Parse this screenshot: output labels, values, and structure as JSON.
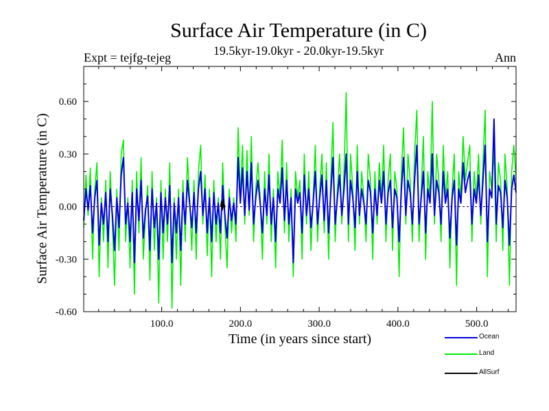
{
  "chart_data": {
    "type": "line",
    "title": "Surface Air Temperature (in C)",
    "subtitle": "19.5kyr-19.0kyr - 20.0kyr-19.5kyr",
    "expt_label": "Expt = tejfg-tejeg",
    "period_label": "Ann",
    "xlabel": "Time (in years since start)",
    "ylabel": "Surface Air Temperature (in C)",
    "xlim": [
      1,
      550
    ],
    "ylim": [
      -0.6,
      0.8
    ],
    "x_ticks": [
      100,
      200,
      300,
      400,
      500
    ],
    "x_tick_labels": [
      "100.0",
      "200.0",
      "300.0",
      "400.0",
      "500.0"
    ],
    "y_ticks": [
      -0.6,
      -0.3,
      0.0,
      0.3,
      0.6
    ],
    "y_tick_labels": [
      "-0.60",
      "-0.30",
      "0.00",
      "0.30",
      "0.60"
    ],
    "zero_line": true,
    "legend_position": "bottom-right",
    "series": [
      {
        "name": "Land",
        "color": "#00ee00",
        "values": [
          -0.12,
          0.18,
          -0.05,
          0.22,
          -0.3,
          0.1,
          0.25,
          -0.4,
          0.05,
          -0.2,
          0.15,
          -0.35,
          0.2,
          -0.1,
          -0.45,
          0.1,
          -0.25,
          0.3,
          0.38,
          -0.2,
          0.05,
          -0.35,
          0.15,
          -0.5,
          0.2,
          -0.15,
          0.28,
          -0.3,
          -0.05,
          0.12,
          -0.42,
          0.2,
          -0.25,
          0.05,
          -0.55,
          0.15,
          -0.3,
          0.1,
          -0.2,
          0.25,
          -0.58,
          0.05,
          -0.3,
          0.1,
          -0.45,
          0.15,
          -0.2,
          0.28,
          0.05,
          -0.25,
          0.15,
          -0.3,
          0.2,
          0.35,
          -0.1,
          0.18,
          -0.28,
          0.1,
          -0.4,
          0.15,
          -0.2,
          0.05,
          -0.3,
          0.25,
          -0.1,
          -0.35,
          0.1,
          -0.15,
          0.05,
          -0.2,
          0.45,
          0.05,
          0.35,
          -0.1,
          0.32,
          -0.05,
          0.4,
          -0.2,
          0.1,
          0.25,
          0.05,
          -0.3,
          0.2,
          -0.1,
          0.3,
          -0.2,
          0.1,
          -0.35,
          0.2,
          0.05,
          0.38,
          -0.15,
          0.25,
          -0.2,
          0.1,
          -0.4,
          0.2,
          0.05,
          0.15,
          -0.3,
          0.3,
          -0.1,
          0.2,
          -0.25,
          0.05,
          0.35,
          -0.2,
          0.1,
          0.3,
          -0.15,
          0.25,
          -0.3,
          0.15,
          0.48,
          -0.2,
          0.1,
          0.3,
          -0.1,
          0.2,
          0.65,
          -0.2,
          0.3,
          0.1,
          -0.25,
          0.35,
          -0.1,
          0.2,
          0.05,
          -0.2,
          0.3,
          0.15,
          -0.3,
          0.2,
          -0.1,
          0.25,
          0.05,
          0.35,
          -0.2,
          0.15,
          0.3,
          -0.25,
          0.2,
          0.1,
          -0.4,
          0.2,
          0.45,
          -0.1,
          0.3,
          0.15,
          -0.2,
          0.3,
          0.55,
          -0.2,
          0.1,
          0.4,
          -0.3,
          0.2,
          0.05,
          0.6,
          -0.1,
          0.3,
          0.15,
          -0.2,
          0.35,
          0.05,
          0.2,
          -0.35,
          0.1,
          0.3,
          -0.45,
          0.2,
          0.05,
          0.4,
          0.15,
          0.25,
          0.35,
          -0.2,
          0.2,
          0.05,
          0.3,
          -0.1,
          0.25,
          0.55,
          -0.4,
          0.2,
          0.1,
          0.33,
          -0.2,
          0.25,
          0.15,
          -0.25,
          0.3,
          0.1,
          -0.45,
          0.2,
          0.35,
          0.15
        ]
      },
      {
        "name": "Ocean",
        "color": "#0000dd",
        "values": [
          -0.08,
          0.1,
          -0.02,
          0.12,
          -0.15,
          0.05,
          0.15,
          -0.22,
          0.02,
          -0.1,
          0.08,
          -0.2,
          0.1,
          -0.05,
          -0.25,
          0.05,
          -0.12,
          0.18,
          0.28,
          -0.1,
          0.02,
          -0.2,
          0.08,
          -0.32,
          0.1,
          -0.08,
          0.15,
          -0.18,
          -0.02,
          0.06,
          -0.25,
          0.1,
          -0.12,
          0.02,
          -0.3,
          0.08,
          -0.15,
          0.05,
          -0.1,
          0.12,
          -0.32,
          0.02,
          -0.15,
          0.05,
          -0.25,
          0.08,
          -0.1,
          0.15,
          0.02,
          -0.12,
          0.08,
          -0.15,
          0.1,
          0.2,
          -0.05,
          0.1,
          -0.15,
          0.05,
          -0.2,
          0.08,
          -0.1,
          0.02,
          -0.15,
          0.12,
          -0.05,
          -0.18,
          0.05,
          -0.08,
          0.02,
          -0.1,
          0.28,
          0.02,
          0.22,
          -0.05,
          0.2,
          -0.02,
          0.25,
          -0.1,
          0.05,
          0.15,
          0.02,
          -0.15,
          0.1,
          -0.05,
          0.18,
          -0.1,
          0.05,
          -0.2,
          0.1,
          0.02,
          0.22,
          -0.08,
          0.15,
          -0.1,
          0.05,
          -0.32,
          0.1,
          0.02,
          0.08,
          -0.15,
          0.18,
          -0.05,
          0.1,
          -0.12,
          0.02,
          0.2,
          -0.1,
          0.05,
          0.18,
          -0.08,
          0.15,
          -0.15,
          0.08,
          0.28,
          -0.1,
          0.05,
          0.18,
          -0.05,
          0.1,
          0.3,
          -0.1,
          0.15,
          0.05,
          -0.12,
          0.2,
          -0.05,
          0.1,
          0.02,
          -0.1,
          0.15,
          0.08,
          -0.15,
          0.1,
          -0.05,
          0.15,
          0.02,
          0.2,
          -0.1,
          0.08,
          0.15,
          -0.12,
          0.1,
          0.05,
          -0.2,
          0.1,
          0.28,
          -0.05,
          0.15,
          0.08,
          -0.1,
          0.15,
          0.35,
          -0.1,
          0.05,
          0.2,
          -0.15,
          0.1,
          0.02,
          0.3,
          -0.05,
          0.15,
          0.08,
          -0.1,
          0.2,
          0.02,
          0.1,
          -0.18,
          0.05,
          0.15,
          -0.22,
          0.1,
          0.02,
          0.25,
          0.08,
          0.15,
          0.2,
          -0.1,
          0.1,
          0.02,
          0.18,
          -0.05,
          0.15,
          0.35,
          -0.2,
          0.1,
          0.05,
          0.5,
          -0.1,
          0.12,
          0.08,
          -0.12,
          0.15,
          0.05,
          -0.22,
          0.1,
          0.18,
          0.08
        ]
      },
      {
        "name": "AllSurf",
        "color": "#000000",
        "x": [
          175,
          176,
          177,
          178,
          179,
          180
        ],
        "values": [
          0.0,
          0.03,
          -0.02,
          0.04,
          -0.01,
          0.01
        ]
      }
    ],
    "legend": [
      "Ocean",
      "Land",
      "AllSurf"
    ]
  }
}
